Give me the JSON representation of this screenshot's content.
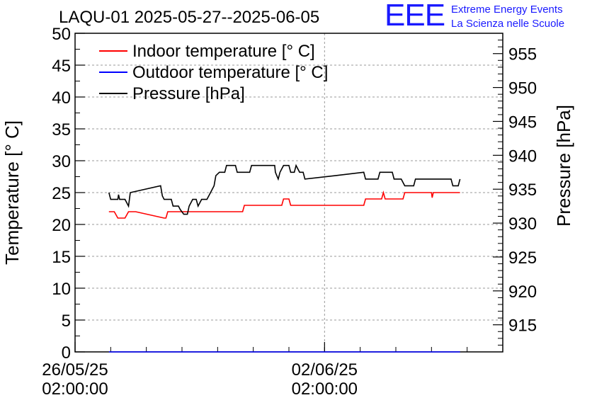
{
  "chart_data": {
    "type": "line",
    "title": "LAQU-01 2025-05-27--2025-06-05",
    "ylabel_left": "Temperature [° C]",
    "ylabel_right": "Pressure [hPa]",
    "xlabel": "",
    "x_unit": "days since 2025-05-26 02:00:00",
    "xlim": [
      0,
      12
    ],
    "ylim_left": [
      0,
      50
    ],
    "ylim_right": [
      911,
      958
    ],
    "left_ticks": [
      "0",
      "5",
      "10",
      "15",
      "20",
      "25",
      "30",
      "35",
      "40",
      "45",
      "50"
    ],
    "right_ticks": [
      "915",
      "920",
      "925",
      "930",
      "935",
      "940",
      "945",
      "950",
      "955"
    ],
    "x_ticks": [
      {
        "x": 0,
        "line1": "26/05/25",
        "line2": "02:00:00"
      },
      {
        "x": 7,
        "line1": "02/06/25",
        "line2": "02:00:00"
      }
    ],
    "grid": true,
    "legend_position": "top-left",
    "series": [
      {
        "name": "Indoor temperature [° C]",
        "axis": "left",
        "color": "#ff0000",
        "points": [
          [
            0.95,
            22
          ],
          [
            1.1,
            22
          ],
          [
            1.2,
            21
          ],
          [
            1.4,
            21
          ],
          [
            1.5,
            22
          ],
          [
            1.7,
            22
          ],
          [
            2.5,
            21
          ],
          [
            2.55,
            21
          ],
          [
            2.6,
            22
          ],
          [
            4.7,
            22
          ],
          [
            4.75,
            23
          ],
          [
            5.8,
            23
          ],
          [
            5.85,
            24
          ],
          [
            6,
            24
          ],
          [
            6.05,
            23
          ],
          [
            8.1,
            23
          ],
          [
            8.15,
            24
          ],
          [
            8.6,
            24
          ],
          [
            8.65,
            25
          ],
          [
            8.7,
            24
          ],
          [
            9.2,
            24
          ],
          [
            9.25,
            25
          ],
          [
            10.0,
            25
          ],
          [
            10.02,
            24.2
          ],
          [
            10.05,
            25
          ],
          [
            10.8,
            25
          ]
        ]
      },
      {
        "name": "Outdoor temperature [° C]",
        "axis": "left",
        "color": "#0000ff",
        "points": [
          [
            0.95,
            0
          ],
          [
            10.8,
            0
          ]
        ]
      },
      {
        "name": "Pressure [hPa]",
        "axis": "right",
        "color": "#000000",
        "points": [
          [
            0.95,
            934.5
          ],
          [
            1.0,
            933.5
          ],
          [
            1.2,
            933.5
          ],
          [
            1.22,
            934.2
          ],
          [
            1.25,
            933.5
          ],
          [
            1.4,
            933.5
          ],
          [
            1.5,
            932.5
          ],
          [
            1.55,
            934.5
          ],
          [
            2.4,
            935.5
          ],
          [
            2.45,
            934
          ],
          [
            2.5,
            933.5
          ],
          [
            2.7,
            933.5
          ],
          [
            2.75,
            932.5
          ],
          [
            2.9,
            932.5
          ],
          [
            2.95,
            932
          ],
          [
            3.05,
            931.3
          ],
          [
            3.15,
            931.3
          ],
          [
            3.2,
            932.5
          ],
          [
            3.3,
            933.5
          ],
          [
            3.4,
            933.5
          ],
          [
            3.45,
            932.5
          ],
          [
            3.55,
            933.5
          ],
          [
            3.7,
            933.5
          ],
          [
            3.8,
            934.5
          ],
          [
            3.9,
            935.5
          ],
          [
            3.95,
            937
          ],
          [
            4.05,
            937.5
          ],
          [
            4.2,
            937.5
          ],
          [
            4.25,
            938.5
          ],
          [
            4.5,
            938.5
          ],
          [
            4.55,
            937.5
          ],
          [
            4.9,
            937.5
          ],
          [
            4.95,
            938.5
          ],
          [
            5.6,
            938.5
          ],
          [
            5.62,
            937.5
          ],
          [
            5.7,
            936.5
          ],
          [
            5.75,
            937.5
          ],
          [
            5.85,
            938.5
          ],
          [
            6.0,
            938.5
          ],
          [
            6.05,
            937.5
          ],
          [
            6.15,
            937.5
          ],
          [
            6.2,
            938.5
          ],
          [
            6.3,
            937.5
          ],
          [
            6.4,
            937.5
          ],
          [
            6.45,
            936.5
          ],
          [
            7.3,
            937
          ],
          [
            8.1,
            937.5
          ],
          [
            8.15,
            936.5
          ],
          [
            8.5,
            936.5
          ],
          [
            8.55,
            937.5
          ],
          [
            8.9,
            937.5
          ],
          [
            8.95,
            936.5
          ],
          [
            9.15,
            936.5
          ],
          [
            9.25,
            935.5
          ],
          [
            9.5,
            935.5
          ],
          [
            9.55,
            936.5
          ],
          [
            10.55,
            936.5
          ],
          [
            10.6,
            935.5
          ],
          [
            10.75,
            935.5
          ],
          [
            10.8,
            936.5
          ]
        ]
      }
    ]
  },
  "logo": {
    "mark": "EEE",
    "line1": "Extreme Energy Events",
    "line2": "La Scienza nelle Scuole"
  },
  "colors": {
    "indoor": "#ff0000",
    "outdoor": "#0000ff",
    "pressure": "#000000",
    "logo": "#1a1aff",
    "grid": "#999999"
  }
}
